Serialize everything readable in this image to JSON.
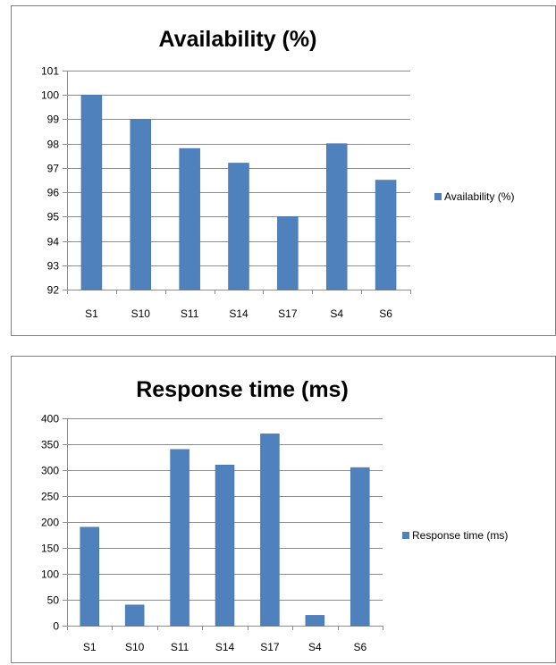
{
  "colors": {
    "bar": "#4f81bd",
    "bar_stroke": "#3e6fa8",
    "gridline": "#8c8c8c"
  },
  "chart_data": [
    {
      "type": "bar",
      "title": "Availability (%)",
      "categories": [
        "S1",
        "S10",
        "S11",
        "S14",
        "S17",
        "S4",
        "S6"
      ],
      "series": [
        {
          "name": "Availability (%)",
          "values": [
            100,
            99,
            97.8,
            97.2,
            95,
            98,
            96.5
          ]
        }
      ],
      "ylim": [
        92,
        101
      ],
      "yticks": [
        92,
        93,
        94,
        95,
        96,
        97,
        98,
        99,
        100,
        101
      ],
      "ytick_labels": [
        "92",
        "93",
        "94",
        "95",
        "96",
        "97",
        "98",
        "99",
        "100",
        "101"
      ],
      "grid": true,
      "legend_position": "right"
    },
    {
      "type": "bar",
      "title": "Response time (ms)",
      "categories": [
        "S1",
        "S10",
        "S11",
        "S14",
        "S17",
        "S4",
        "S6"
      ],
      "series": [
        {
          "name": "Response time (ms)",
          "values": [
            190,
            40,
            340,
            310,
            370,
            20,
            305
          ]
        }
      ],
      "ylim": [
        0,
        400
      ],
      "yticks": [
        0,
        50,
        100,
        150,
        200,
        250,
        300,
        350,
        400
      ],
      "ytick_labels": [
        "0",
        "50",
        "100",
        "150",
        "200",
        "250",
        "300",
        "350",
        "400"
      ],
      "grid": true,
      "legend_position": "right"
    }
  ]
}
